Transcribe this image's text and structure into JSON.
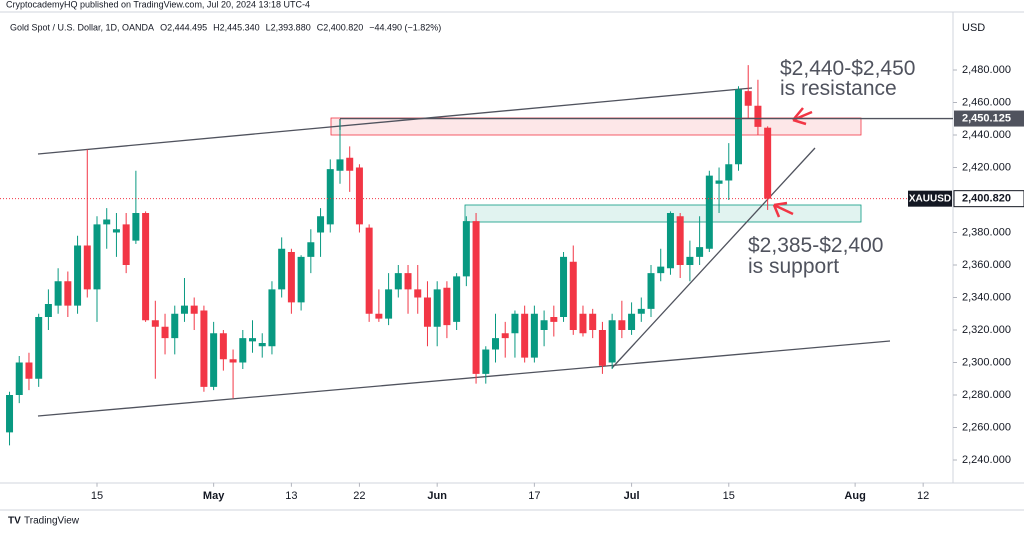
{
  "chart_data": {
    "type": "candlestick",
    "publisher": "CryptocademyHQ published on TradingView.com, Jul 20, 2024 13:18 UTC-4",
    "symbol": "Gold Spot / U.S. Dollar, 1D, OANDA",
    "legend_values": [
      "O2,444.495",
      "H2,445.340",
      "L2,393.880",
      "C2,400.820",
      "−44.490 (−1.82%)"
    ],
    "currency": "USD",
    "annotations": [
      "$2,440-$2,450",
      "is resistance",
      "$2,385-$2,400",
      "is support"
    ],
    "brand": "TradingView",
    "up_color": "#089981",
    "down_color": "#f23645",
    "grid": false,
    "x": [
      0,
      1,
      2,
      3,
      4,
      5,
      6,
      7,
      8,
      9,
      10,
      11,
      12,
      13,
      14,
      15,
      16,
      17,
      18,
      19,
      20,
      21,
      22,
      23,
      24,
      25,
      26,
      27,
      28,
      29,
      30,
      31,
      32,
      33,
      34,
      35,
      36,
      37,
      38,
      39,
      40,
      41,
      42,
      43,
      44,
      45,
      46,
      47,
      48,
      49,
      50,
      51,
      52,
      53,
      54,
      55,
      56,
      57,
      58,
      59,
      60,
      61,
      62,
      63,
      64,
      65,
      66,
      67,
      68,
      69,
      70,
      71,
      72,
      73,
      74,
      75,
      76,
      77,
      78
    ],
    "series": [
      {
        "name": "XAUUSD",
        "open": [
          2257,
          2280,
          2300,
          2290,
          2328,
          2335,
          2350,
          2335,
          2372,
          2345,
          2385,
          2380,
          2385,
          2375,
          2392,
          2326,
          2322,
          2315,
          2330,
          2335,
          2332,
          2285,
          2318,
          2302,
          2300,
          2313,
          2310,
          2310,
          2345,
          2368,
          2337,
          2365,
          2380,
          2385,
          2418,
          2426,
          2420,
          2383,
          2330,
          2327,
          2345,
          2355,
          2345,
          2340,
          2322,
          2346,
          2325,
          2353,
          2387,
          2293,
          2308,
          2318,
          2318,
          2330,
          2303,
          2320,
          2328,
          2328,
          2362,
          2330,
          2330,
          2320,
          2300,
          2326,
          2320,
          2330,
          2333,
          2355,
          2358,
          2390,
          2360,
          2365,
          2370,
          2410,
          2412,
          2422,
          2467,
          2458,
          2444.495
        ],
        "high": [
          2282,
          2304,
          2306,
          2330,
          2345,
          2358,
          2356,
          2378,
          2431,
          2390,
          2395,
          2392,
          2392,
          2418,
          2393,
          2338,
          2330,
          2335,
          2352,
          2340,
          2335,
          2325,
          2320,
          2308,
          2320,
          2326,
          2318,
          2350,
          2377,
          2370,
          2366,
          2382,
          2395,
          2425,
          2449,
          2433,
          2422,
          2385,
          2345,
          2355,
          2360,
          2360,
          2360,
          2350,
          2350,
          2350,
          2355,
          2390,
          2392,
          2310,
          2330,
          2325,
          2332,
          2335,
          2335,
          2332,
          2335,
          2368,
          2372,
          2335,
          2333,
          2325,
          2330,
          2338,
          2337,
          2340,
          2360,
          2370,
          2393,
          2392,
          2375,
          2390,
          2418,
          2420,
          2435,
          2470,
          2483,
          2474,
          2445.34
        ],
        "low": [
          2249,
          2275,
          2283,
          2285,
          2320,
          2330,
          2328,
          2330,
          2340,
          2325,
          2370,
          2365,
          2355,
          2373,
          2325,
          2290,
          2305,
          2305,
          2325,
          2320,
          2282,
          2283,
          2295,
          2278,
          2296,
          2306,
          2303,
          2305,
          2340,
          2330,
          2332,
          2355,
          2365,
          2380,
          2410,
          2405,
          2380,
          2325,
          2325,
          2323,
          2340,
          2330,
          2330,
          2310,
          2310,
          2315,
          2320,
          2347,
          2287,
          2287,
          2300,
          2303,
          2303,
          2300,
          2300,
          2310,
          2316,
          2325,
          2317,
          2316,
          2315,
          2293,
          2296,
          2315,
          2317,
          2325,
          2328,
          2350,
          2354,
          2352,
          2350,
          2360,
          2368,
          2392,
          2400,
          2418,
          2450,
          2440,
          2393.88
        ],
        "close": [
          2280,
          2300,
          2290,
          2328,
          2336,
          2350,
          2335,
          2372,
          2345,
          2385,
          2388,
          2382,
          2360,
          2392,
          2326,
          2322,
          2315,
          2330,
          2335,
          2330,
          2285,
          2318,
          2302,
          2300,
          2315,
          2315,
          2312,
          2345,
          2370,
          2337,
          2365,
          2374,
          2390,
          2419,
          2425,
          2418,
          2385,
          2330,
          2327,
          2345,
          2355,
          2345,
          2340,
          2322,
          2345,
          2323,
          2353,
          2387,
          2293,
          2308,
          2315,
          2315,
          2330,
          2303,
          2330,
          2326,
          2325,
          2365,
          2320,
          2318,
          2320,
          2298,
          2326,
          2320,
          2330,
          2333,
          2355,
          2359,
          2392,
          2360,
          2365,
          2371,
          2415,
          2412,
          2422,
          2468,
          2458,
          2445,
          2400.82
        ]
      }
    ],
    "last_price": {
      "name": "XAUUSD",
      "value": 2400.82,
      "label": "2,400.820"
    },
    "level_line": {
      "value": 2450.125,
      "label": "2,450.125"
    },
    "xlim": [
      -0.98,
      97.07
    ],
    "xticks": [
      {
        "value": 9,
        "label": "15"
      },
      {
        "value": 21,
        "label": "May"
      },
      {
        "value": 29,
        "label": "13"
      },
      {
        "value": 36,
        "label": "22"
      },
      {
        "value": 44,
        "label": "Jun"
      },
      {
        "value": 54,
        "label": "17"
      },
      {
        "value": 64,
        "label": "Jul"
      },
      {
        "value": 74,
        "label": "15"
      },
      {
        "value": 87,
        "label": "Aug"
      },
      {
        "value": 94,
        "label": "12"
      }
    ],
    "ylim": [
      2226,
      2505
    ],
    "yticks": [
      {
        "value": 2240,
        "label": "2,240.000"
      },
      {
        "value": 2260,
        "label": "2,260.000"
      },
      {
        "value": 2280,
        "label": "2,280.000"
      },
      {
        "value": 2300,
        "label": "2,300.000"
      },
      {
        "value": 2320,
        "label": "2,320.000"
      },
      {
        "value": 2340,
        "label": "2,340.000"
      },
      {
        "value": 2360,
        "label": "2,360.000"
      },
      {
        "value": 2380,
        "label": "2,380.000"
      },
      {
        "value": 2400,
        "label": "2,400.000"
      },
      {
        "value": 2420,
        "label": "2,420.000"
      },
      {
        "value": 2440,
        "label": "2,440.000"
      },
      {
        "value": 2460,
        "label": "2,460.000"
      },
      {
        "value": 2480,
        "label": "2,480.000"
      }
    ]
  }
}
